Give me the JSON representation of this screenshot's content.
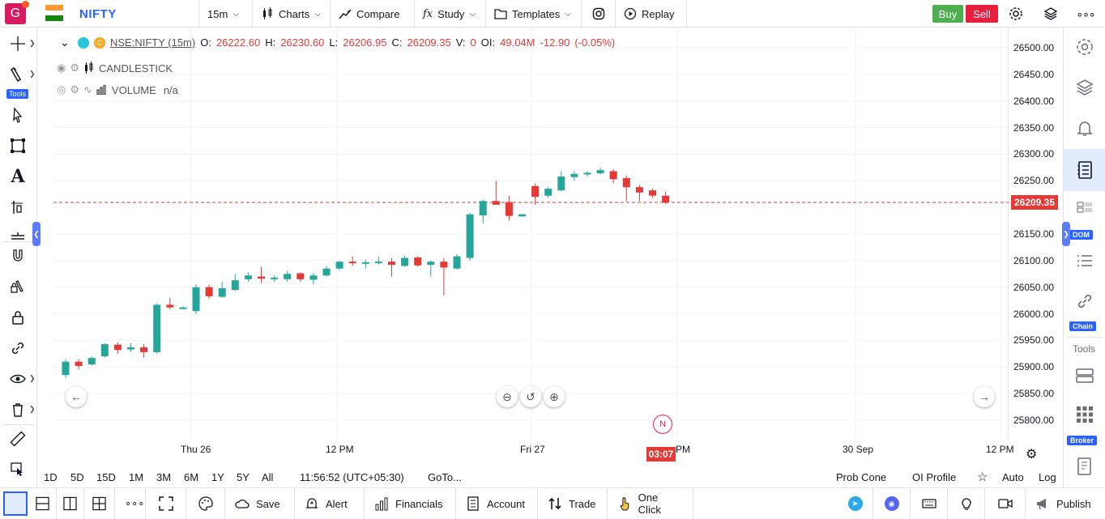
{
  "topbar": {
    "avatar_letter": "G",
    "symbol": "NIFTY",
    "interval": "15m",
    "charts_label": "Charts",
    "compare_label": "Compare",
    "study_label": "Study",
    "templates_label": "Templates",
    "replay_label": "Replay",
    "buy_label": "Buy",
    "sell_label": "Sell"
  },
  "legend": {
    "symbol_label": "NSE:NIFTY (15m)",
    "o_label": "O:",
    "o": "26222.60",
    "h_label": "H:",
    "h": "26230.60",
    "l_label": "L:",
    "l": "26206.95",
    "c_label": "C:",
    "c": "26209.35",
    "v_label": "V:",
    "v": "0",
    "oi_label": "OI:",
    "oi": "49.04M",
    "change": "-12.90",
    "change_pct": "(-0.05%)"
  },
  "indicators": [
    {
      "name": "CANDLESTICK",
      "value": ""
    },
    {
      "name": "VOLUME",
      "value": "n/a"
    }
  ],
  "left_toolbar": {
    "tools_badge": "Tools"
  },
  "right_toolbar": {
    "dom_badge": "DOM",
    "chain_badge": "Chain",
    "tools_label": "Tools",
    "broker_badge": "Broker"
  },
  "price_axis": [
    "26500.00",
    "26450.00",
    "26400.00",
    "26350.00",
    "26300.00",
    "26250.00",
    "26150.00",
    "26100.00",
    "26050.00",
    "26000.00",
    "25950.00",
    "25900.00",
    "25850.00",
    "25800.00"
  ],
  "current_price": "26209.35",
  "time_axis": [
    "Thu 26",
    "12 PM",
    "Fri 27",
    "PM",
    "30 Sep",
    "12 PM"
  ],
  "countdown": "03:07",
  "news_badge": "N",
  "ranges": [
    "1D",
    "5D",
    "15D",
    "1M",
    "3M",
    "6M",
    "1Y",
    "5Y",
    "All"
  ],
  "range_bar": {
    "clock": "11:56:52 (UTC+05:30)",
    "goto": "GoTo...",
    "prob_cone": "Prob Cone",
    "oi_profile": "OI Profile",
    "auto": "Auto",
    "log": "Log"
  },
  "bottombar": {
    "save": "Save",
    "alert": "Alert",
    "financials": "Financials",
    "account": "Account",
    "trade": "Trade",
    "one_click": "One Click",
    "publish": "Publish"
  },
  "colors": {
    "up": "#26a69a",
    "down": "#e53935",
    "accent": "#2962ff"
  },
  "chart_data": {
    "type": "candlestick",
    "ylim": [
      25780,
      26520
    ],
    "candles": [
      {
        "o": 25885,
        "h": 25915,
        "l": 25880,
        "c": 25910
      },
      {
        "o": 25910,
        "h": 25915,
        "l": 25895,
        "c": 25902
      },
      {
        "o": 25905,
        "h": 25920,
        "l": 25903,
        "c": 25917
      },
      {
        "o": 25920,
        "h": 25945,
        "l": 25918,
        "c": 25943
      },
      {
        "o": 25942,
        "h": 25946,
        "l": 25925,
        "c": 25932
      },
      {
        "o": 25933,
        "h": 25945,
        "l": 25928,
        "c": 25937
      },
      {
        "o": 25937,
        "h": 25943,
        "l": 25918,
        "c": 25928
      },
      {
        "o": 25928,
        "h": 26020,
        "l": 25925,
        "c": 26017
      },
      {
        "o": 26017,
        "h": 26030,
        "l": 26008,
        "c": 26012
      },
      {
        "o": 26012,
        "h": 26014,
        "l": 26008,
        "c": 26012
      },
      {
        "o": 26005,
        "h": 26055,
        "l": 26000,
        "c": 26050
      },
      {
        "o": 26050,
        "h": 26055,
        "l": 26028,
        "c": 26033
      },
      {
        "o": 26032,
        "h": 26060,
        "l": 26030,
        "c": 26048
      },
      {
        "o": 26045,
        "h": 26075,
        "l": 26043,
        "c": 26063
      },
      {
        "o": 26065,
        "h": 26078,
        "l": 26060,
        "c": 26072
      },
      {
        "o": 26070,
        "h": 26088,
        "l": 26058,
        "c": 26066
      },
      {
        "o": 26066,
        "h": 26072,
        "l": 26060,
        "c": 26068
      },
      {
        "o": 26065,
        "h": 26080,
        "l": 26060,
        "c": 26075
      },
      {
        "o": 26076,
        "h": 26078,
        "l": 26060,
        "c": 26065
      },
      {
        "o": 26064,
        "h": 26077,
        "l": 26055,
        "c": 26072
      },
      {
        "o": 26072,
        "h": 26090,
        "l": 26070,
        "c": 26085
      },
      {
        "o": 26085,
        "h": 26100,
        "l": 26082,
        "c": 26098
      },
      {
        "o": 26098,
        "h": 26108,
        "l": 26090,
        "c": 26095
      },
      {
        "o": 26095,
        "h": 26102,
        "l": 26085,
        "c": 26097
      },
      {
        "o": 26097,
        "h": 26108,
        "l": 26093,
        "c": 26098
      },
      {
        "o": 26098,
        "h": 26105,
        "l": 26070,
        "c": 26092
      },
      {
        "o": 26090,
        "h": 26110,
        "l": 26088,
        "c": 26105
      },
      {
        "o": 26106,
        "h": 26108,
        "l": 26088,
        "c": 26091
      },
      {
        "o": 26092,
        "h": 26100,
        "l": 26070,
        "c": 26098
      },
      {
        "o": 26098,
        "h": 26105,
        "l": 26035,
        "c": 26087
      },
      {
        "o": 26085,
        "h": 26112,
        "l": 26083,
        "c": 26108
      },
      {
        "o": 26105,
        "h": 26190,
        "l": 26100,
        "c": 26187
      },
      {
        "o": 26185,
        "h": 26215,
        "l": 26170,
        "c": 26212
      },
      {
        "o": 26212,
        "h": 26250,
        "l": 26205,
        "c": 26205
      },
      {
        "o": 26210,
        "h": 26222,
        "l": 26175,
        "c": 26184
      },
      {
        "o": 26183,
        "h": 26188,
        "l": 26183,
        "c": 26187
      },
      {
        "o": 26240,
        "h": 26245,
        "l": 26205,
        "c": 26220
      },
      {
        "o": 26222,
        "h": 26238,
        "l": 26218,
        "c": 26235
      },
      {
        "o": 26232,
        "h": 26268,
        "l": 26230,
        "c": 26258
      },
      {
        "o": 26257,
        "h": 26268,
        "l": 26250,
        "c": 26263
      },
      {
        "o": 26263,
        "h": 26268,
        "l": 26258,
        "c": 26265
      },
      {
        "o": 26264,
        "h": 26275,
        "l": 26262,
        "c": 26270
      },
      {
        "o": 26268,
        "h": 26272,
        "l": 26245,
        "c": 26253
      },
      {
        "o": 26255,
        "h": 26260,
        "l": 26212,
        "c": 26238
      },
      {
        "o": 26238,
        "h": 26242,
        "l": 26212,
        "c": 26228
      },
      {
        "o": 26232,
        "h": 26235,
        "l": 26218,
        "c": 26222
      },
      {
        "o": 26222,
        "h": 26230,
        "l": 26206,
        "c": 26209
      }
    ]
  }
}
